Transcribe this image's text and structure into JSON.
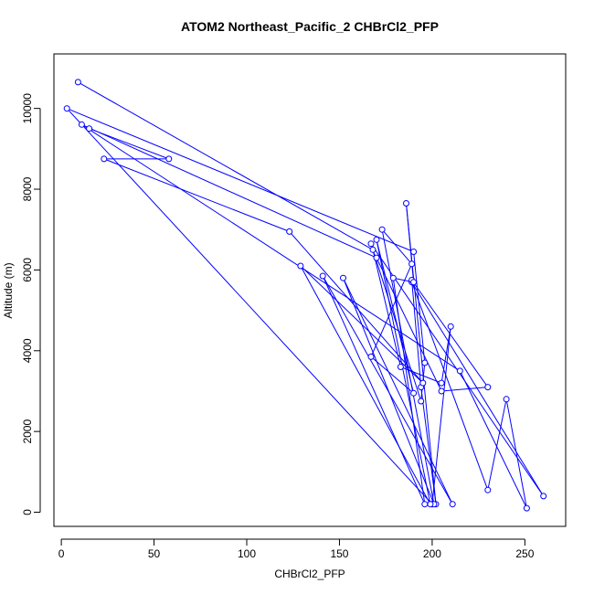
{
  "chart_data": {
    "type": "scatter",
    "title": "ATOM2 Northeast_Pacific_2 CHBrCl2_PFP",
    "xlabel": "CHBrCl2_PFP",
    "ylabel": "Altitude (m)",
    "xlim": [
      -4,
      272
    ],
    "ylim": [
      -350,
      11350
    ],
    "x_ticks": [
      0,
      50,
      100,
      150,
      200,
      250
    ],
    "y_ticks": [
      0,
      2000,
      4000,
      6000,
      8000,
      10000
    ],
    "x_tick_labels": [
      "0",
      "50",
      "100",
      "150",
      "200",
      "250"
    ],
    "y_tick_labels": [
      "0",
      "2000",
      "4000",
      "6000",
      "8000",
      "10000"
    ],
    "grid": false,
    "colors": {
      "series": "#0000ff",
      "frame": "#000000"
    },
    "series": [
      {
        "points": [
          [
            9,
            10650
          ],
          [
            168,
            6500
          ],
          [
            183,
            3600
          ],
          [
            205,
            3200
          ],
          [
            210,
            4600
          ],
          [
            200,
            200
          ],
          [
            3,
            10000
          ],
          [
            190,
            6450
          ],
          [
            196,
            3700
          ],
          [
            194,
            2750
          ],
          [
            167,
            6650
          ],
          [
            260,
            400
          ],
          [
            189,
            5700
          ],
          [
            230,
            550
          ],
          [
            240,
            2800
          ],
          [
            251,
            100
          ],
          [
            215,
            3500
          ],
          [
            11,
            9600
          ],
          [
            170,
            6300
          ],
          [
            205,
            3000
          ],
          [
            230,
            3100
          ],
          [
            189,
            5750
          ],
          [
            194,
            3100
          ],
          [
            202,
            200
          ],
          [
            186,
            7650
          ],
          [
            190,
            5700
          ],
          [
            179,
            5800
          ],
          [
            196,
            200
          ],
          [
            141,
            5850
          ],
          [
            211,
            200
          ],
          [
            152,
            5800
          ],
          [
            201,
            200
          ],
          [
            173,
            7000
          ],
          [
            189,
            6150
          ],
          [
            167,
            3850
          ],
          [
            190,
            2950
          ],
          [
            170,
            6750
          ],
          [
            199,
            200
          ],
          [
            129,
            6100
          ],
          [
            195,
            3200
          ],
          [
            123,
            6950
          ],
          [
            23,
            8750
          ],
          [
            58,
            8750
          ],
          [
            15,
            9500
          ]
        ]
      }
    ]
  }
}
